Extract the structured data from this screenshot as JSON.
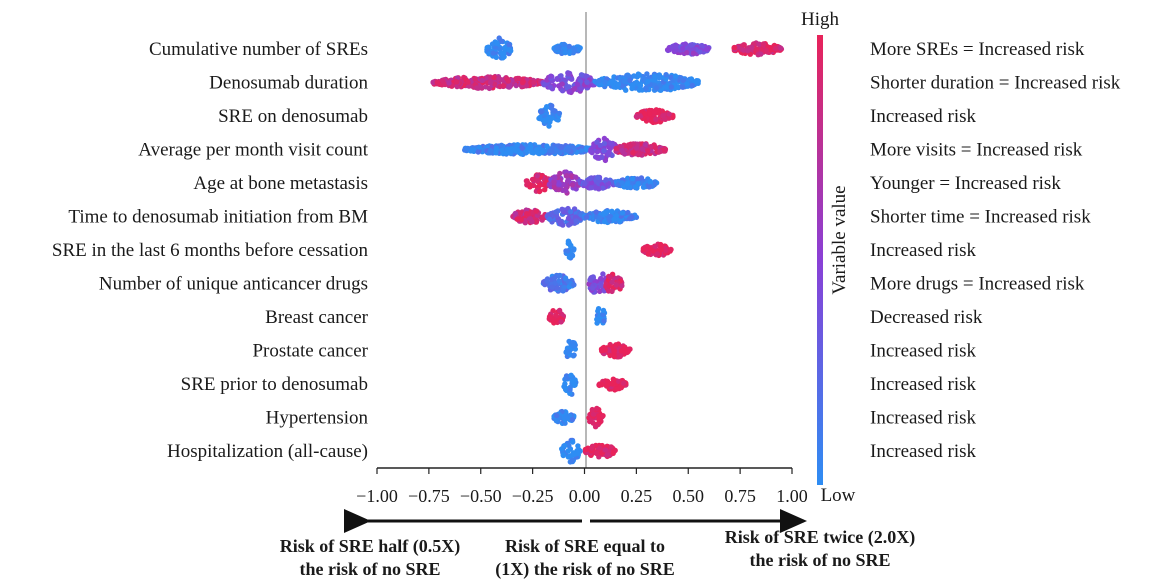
{
  "chart_data": {
    "type": "scatter",
    "subtype": "beeswarm",
    "xlim": [
      -1.0,
      1.0
    ],
    "x_ticks": [
      "−1.00",
      "−0.75",
      "−0.50",
      "−0.25",
      "0.00",
      "0.25",
      "0.50",
      "0.75",
      "1.00"
    ],
    "x_tick_values": [
      -1.0,
      -0.75,
      -0.5,
      -0.25,
      0.0,
      0.25,
      0.5,
      0.75,
      1.0
    ],
    "colorbar": {
      "label": "Variable value",
      "high": "High",
      "low": "Low",
      "colors": {
        "high": "#e8235a",
        "mid": "#8a40d6",
        "low": "#2e8df3"
      }
    },
    "features": [
      {
        "name": "Cumulative number of SREs",
        "note": "More SREs = Increased risk",
        "clusters": [
          {
            "from": -0.47,
            "to": -0.35,
            "value": 0.0,
            "width": 1.0
          },
          {
            "from": -0.15,
            "to": -0.02,
            "value": 0.0,
            "width": 0.45
          },
          {
            "from": 0.4,
            "to": 0.6,
            "value": 0.45,
            "width": 0.5
          },
          {
            "from": 0.72,
            "to": 0.95,
            "value": 0.95,
            "width": 0.55
          }
        ]
      },
      {
        "name": "Denosumab duration",
        "note": "Shorter duration = Increased risk",
        "clusters": [
          {
            "from": -0.73,
            "to": -0.2,
            "value": 0.85,
            "width": 0.55
          },
          {
            "from": -0.2,
            "to": 0.05,
            "value": 0.45,
            "width": 0.95
          },
          {
            "from": 0.05,
            "to": 0.55,
            "value": 0.0,
            "width": 0.8
          }
        ]
      },
      {
        "name": "SRE on denosumab",
        "note": "Increased risk",
        "clusters": [
          {
            "from": -0.22,
            "to": -0.12,
            "value": 0.0,
            "width": 1.0
          },
          {
            "from": 0.25,
            "to": 0.43,
            "value": 1.0,
            "width": 0.6
          }
        ]
      },
      {
        "name": "Average per month visit count",
        "note": "More visits = Increased risk",
        "clusters": [
          {
            "from": -0.58,
            "to": 0.05,
            "value": 0.05,
            "width": 0.45
          },
          {
            "from": 0.03,
            "to": 0.16,
            "value": 0.45,
            "width": 1.0
          },
          {
            "from": 0.14,
            "to": 0.39,
            "value": 0.85,
            "width": 0.55
          }
        ]
      },
      {
        "name": "Age at bone metastasis",
        "note": "Younger = Increased risk",
        "clusters": [
          {
            "from": -0.28,
            "to": -0.15,
            "value": 0.95,
            "width": 0.8
          },
          {
            "from": -0.17,
            "to": -0.02,
            "value": 0.6,
            "width": 1.0
          },
          {
            "from": -0.02,
            "to": 0.15,
            "value": 0.35,
            "width": 0.55
          },
          {
            "from": 0.15,
            "to": 0.35,
            "value": 0.05,
            "width": 0.55
          }
        ]
      },
      {
        "name": "Time to denosumab initiation from BM",
        "note": "Shorter time = Increased risk",
        "clusters": [
          {
            "from": -0.35,
            "to": -0.18,
            "value": 0.85,
            "width": 0.6
          },
          {
            "from": -0.18,
            "to": 0.0,
            "value": 0.25,
            "width": 0.85
          },
          {
            "from": 0.0,
            "to": 0.25,
            "value": 0.05,
            "width": 0.55
          }
        ]
      },
      {
        "name": "SRE in the last 6 months before cessation",
        "note": "Increased risk",
        "clusters": [
          {
            "from": -0.09,
            "to": -0.05,
            "value": 0.0,
            "width": 1.0
          },
          {
            "from": 0.28,
            "to": 0.42,
            "value": 1.0,
            "width": 0.55
          }
        ]
      },
      {
        "name": "Number of unique anticancer drugs",
        "note": "More drugs = Increased risk",
        "clusters": [
          {
            "from": -0.2,
            "to": -0.05,
            "value": 0.15,
            "width": 0.75
          },
          {
            "from": 0.02,
            "to": 0.12,
            "value": 0.45,
            "width": 1.0
          },
          {
            "from": 0.1,
            "to": 0.18,
            "value": 0.95,
            "width": 0.95
          }
        ]
      },
      {
        "name": "Breast cancer",
        "note": "Decreased risk",
        "clusters": [
          {
            "from": -0.17,
            "to": -0.1,
            "value": 1.0,
            "width": 0.75
          },
          {
            "from": 0.05,
            "to": 0.1,
            "value": 0.0,
            "width": 0.95
          }
        ]
      },
      {
        "name": "Prostate cancer",
        "note": "Increased risk",
        "clusters": [
          {
            "from": -0.09,
            "to": -0.04,
            "value": 0.0,
            "width": 1.0
          },
          {
            "from": 0.08,
            "to": 0.22,
            "value": 1.0,
            "width": 0.6
          }
        ]
      },
      {
        "name": "SRE prior to denosumab",
        "note": "Increased risk",
        "clusters": [
          {
            "from": -0.1,
            "to": -0.04,
            "value": 0.0,
            "width": 1.0
          },
          {
            "from": 0.07,
            "to": 0.2,
            "value": 1.0,
            "width": 0.55
          }
        ]
      },
      {
        "name": "Hypertension",
        "note": "Increased risk",
        "clusters": [
          {
            "from": -0.15,
            "to": -0.05,
            "value": 0.0,
            "width": 0.55
          },
          {
            "from": 0.02,
            "to": 0.09,
            "value": 1.0,
            "width": 0.95
          }
        ]
      },
      {
        "name": "Hospitalization (all-cause)",
        "note": "Increased risk",
        "clusters": [
          {
            "from": -0.11,
            "to": -0.02,
            "value": 0.0,
            "width": 1.0
          },
          {
            "from": 0.0,
            "to": 0.15,
            "value": 1.0,
            "width": 0.65
          }
        ]
      }
    ],
    "captions": {
      "left": [
        "Risk of SRE half (0.5X)",
        "the risk of no SRE"
      ],
      "center": [
        "Risk of SRE equal to",
        "(1X) the risk of no SRE"
      ],
      "right": [
        "Risk of SRE twice (2.0X)",
        "the risk of no SRE"
      ]
    }
  }
}
